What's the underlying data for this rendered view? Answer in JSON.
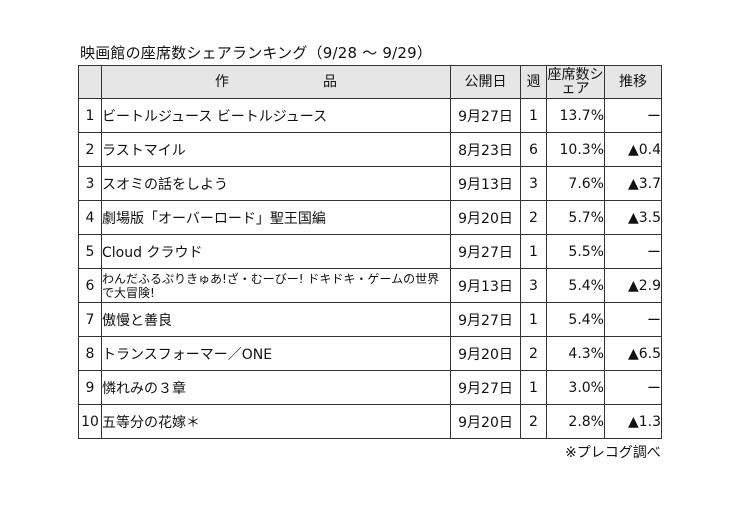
{
  "title": "映画館の座席数シェアランキング（9/28 ～ 9/29）",
  "headers": {
    "work": "作　品",
    "release": "公開日",
    "weeks": "週",
    "share": "座席数シェア",
    "trend": "推移"
  },
  "rows": [
    {
      "rank": "1",
      "title": "ビートルジュース ビートルジュース",
      "release": "9月27日",
      "weeks": "1",
      "share": "13.7%",
      "change": "ー"
    },
    {
      "rank": "2",
      "title": "ラストマイル",
      "release": "8月23日",
      "weeks": "6",
      "share": "10.3%",
      "change": "▲0.4"
    },
    {
      "rank": "3",
      "title": "スオミの話をしよう",
      "release": "9月13日",
      "weeks": "3",
      "share": "7.6%",
      "change": "▲3.7"
    },
    {
      "rank": "4",
      "title": "劇場版「オーバーロード」聖王国編",
      "release": "9月20日",
      "weeks": "2",
      "share": "5.7%",
      "change": "▲3.5"
    },
    {
      "rank": "5",
      "title": "Cloud クラウド",
      "release": "9月27日",
      "weeks": "1",
      "share": "5.5%",
      "change": "ー"
    },
    {
      "rank": "6",
      "title": "わんだふるぷりきゅあ!ざ・むーびー! ドキドキ・ゲームの世界で大冒険!",
      "release": "9月13日",
      "weeks": "3",
      "share": "5.4%",
      "change": "▲2.9"
    },
    {
      "rank": "7",
      "title": "傲慢と善良",
      "release": "9月27日",
      "weeks": "1",
      "share": "5.4%",
      "change": "ー"
    },
    {
      "rank": "8",
      "title": "トランスフォーマー／ONE",
      "release": "9月20日",
      "weeks": "2",
      "share": "4.3%",
      "change": "▲6.5"
    },
    {
      "rank": "9",
      "title": "憐れみの３章",
      "release": "9月27日",
      "weeks": "1",
      "share": "3.0%",
      "change": "ー"
    },
    {
      "rank": "10",
      "title": "五等分の花嫁＊",
      "release": "9月20日",
      "weeks": "2",
      "share": "2.8%",
      "change": "▲1.3"
    }
  ],
  "note": "※プレコグ調べ"
}
